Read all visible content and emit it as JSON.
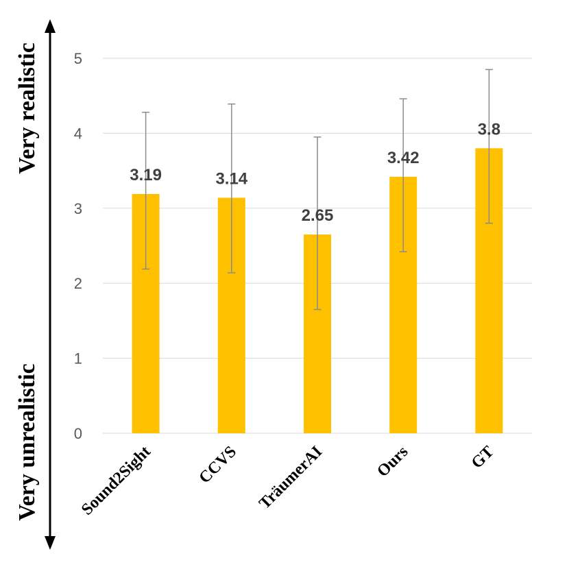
{
  "chart_data": {
    "type": "bar",
    "categories": [
      "Sound2Sight",
      "CCVS",
      "TräumerAI",
      "Ours",
      "GT"
    ],
    "values": [
      3.19,
      3.14,
      2.65,
      3.42,
      3.8
    ],
    "value_labels": [
      "3.19",
      "3.14",
      "2.65",
      "3.42",
      "3.8"
    ],
    "error_low": [
      2.19,
      2.14,
      1.65,
      2.42,
      2.8
    ],
    "error_high": [
      4.28,
      4.39,
      3.95,
      4.46,
      4.85
    ],
    "ylim": [
      0,
      5
    ],
    "yticks": [
      0,
      1,
      2,
      3,
      4,
      5
    ],
    "grid": true,
    "bar_color": "#FFC000",
    "side_labels": {
      "top": "Very realistic",
      "bottom": "Very unrealistic"
    }
  }
}
